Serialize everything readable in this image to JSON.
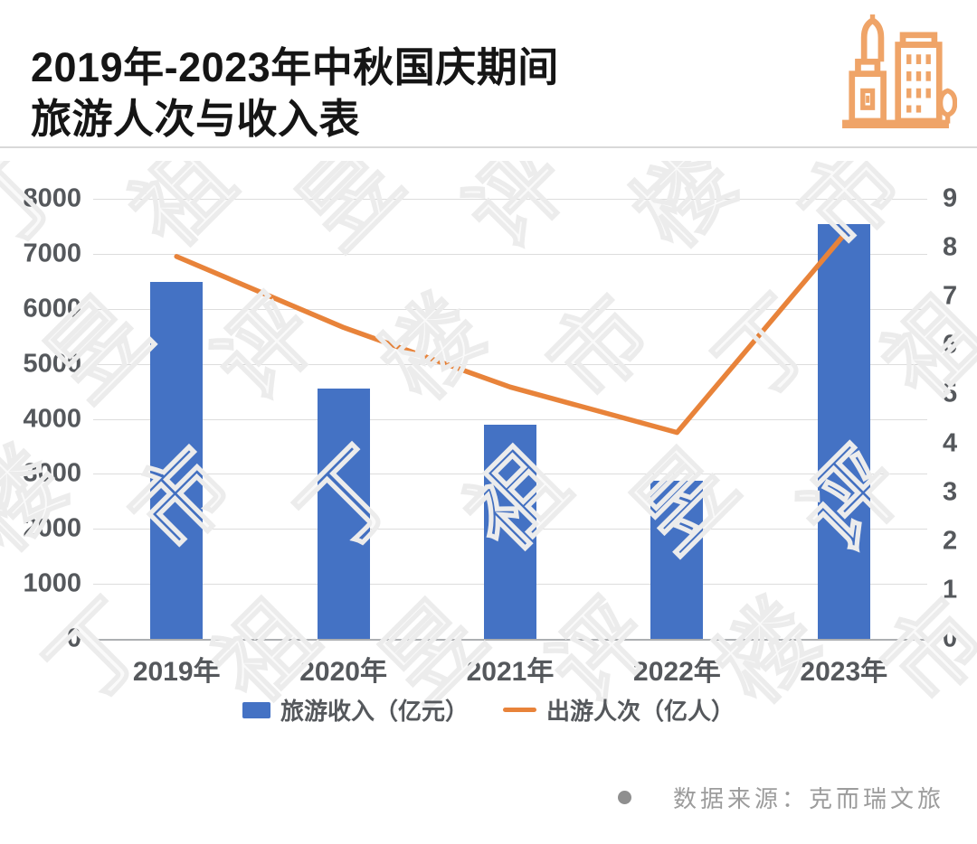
{
  "header": {
    "title_line1": "2019年-2023年中秋国庆期间",
    "title_line2": "旅游人次与收入表",
    "icon": "city-buildings-icon",
    "icon_color": "#EFA468"
  },
  "chart_data": {
    "type": "combo-bar-line",
    "categories": [
      "2019年",
      "2020年",
      "2021年",
      "2022年",
      "2023年"
    ],
    "series": [
      {
        "name": "旅游收入（亿元）",
        "type": "bar",
        "axis": "left",
        "color": "#4472C4",
        "values": [
          6497.1,
          4543.3,
          3890.6,
          2872.1,
          7534.3
        ]
      },
      {
        "name": "出游人次（亿人）",
        "type": "line",
        "axis": "right",
        "color": "#E8833A",
        "values": [
          7.82,
          6.37,
          5.15,
          4.22,
          8.26
        ]
      }
    ],
    "left_axis": {
      "min": 0,
      "max": 8000,
      "step": 1000,
      "ticks": [
        "8000",
        "7000",
        "6000",
        "5000",
        "4000",
        "3000",
        "2000",
        "1000",
        "0"
      ]
    },
    "right_axis": {
      "min": 0,
      "max": 9,
      "step": 1,
      "ticks": [
        "9",
        "8",
        "7",
        "6",
        "5",
        "4",
        "3",
        "2",
        "1",
        "0"
      ]
    },
    "grid": true,
    "legend_position": "bottom"
  },
  "legend": {
    "items": [
      {
        "label": "旅游收入（亿元）",
        "swatch": "bar",
        "color": "#4472C4"
      },
      {
        "label": "出游人次（亿人）",
        "swatch": "line",
        "color": "#E8833A"
      }
    ]
  },
  "source": {
    "text": "数据来源：克而瑞文旅"
  },
  "watermark": {
    "text": "丁祖昱评楼市"
  },
  "colors": {
    "bar": "#4472C4",
    "line": "#E8833A",
    "grid": "#DDDDDD",
    "baseline": "#ADAFB2",
    "axis_text": "#55585C",
    "title_text": "#151515",
    "source_text": "#9C9C9C",
    "divider": "#D9D9D9",
    "watermark_stroke": "#ECECEC"
  }
}
